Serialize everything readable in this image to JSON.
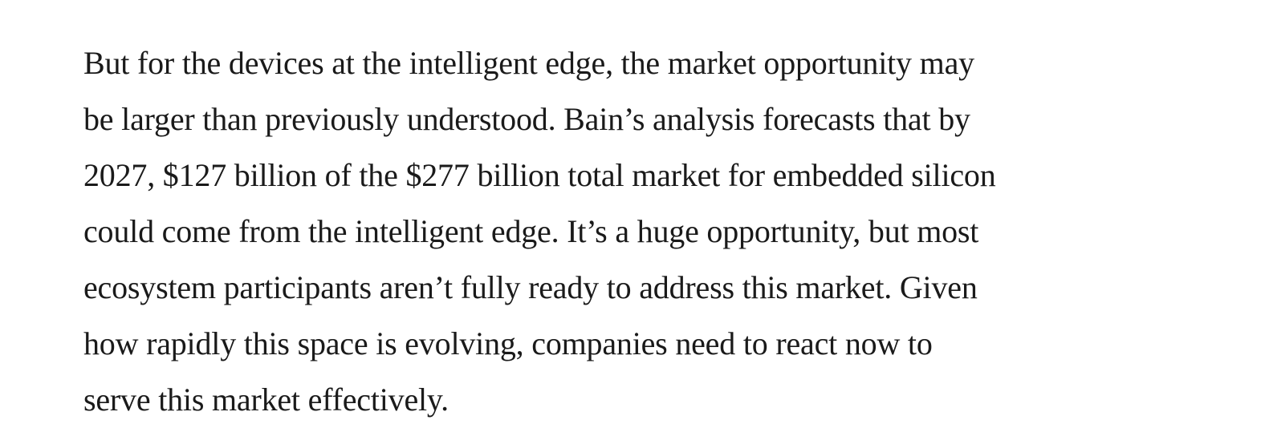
{
  "article": {
    "paragraph_lines": [
      "But for the devices at the intelligent edge, the market opportunity may",
      "be larger than previously understood. Bain’s analysis forecasts that by",
      "2027, $127 billion of the $277 billion total market for embedded silicon",
      "could come from the intelligent edge. It’s a huge opportunity, but most",
      "ecosystem participants aren’t fully ready to address this market. Given",
      "how rapidly this space is evolving, companies need to react now to",
      "serve this market effectively."
    ]
  }
}
